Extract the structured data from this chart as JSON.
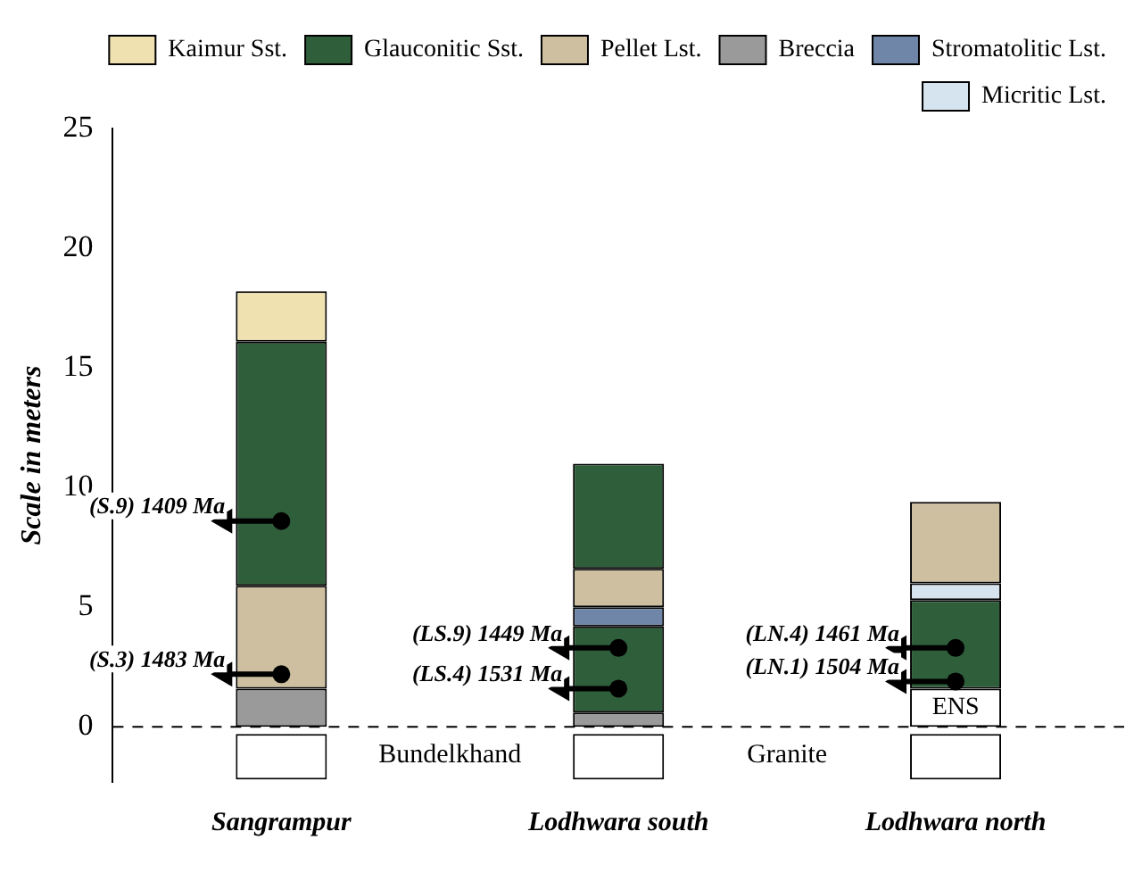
{
  "chart_data": {
    "type": "bar",
    "ylabel": "Scale in meters",
    "categories": [
      "Sangrampur",
      "Lodhwara south",
      "Lodhwara north"
    ],
    "series": [
      {
        "name": "Kaimur Sst.",
        "color": "#efe2b0",
        "base": [
          16.1,
          null,
          null
        ],
        "values": [
          2.1,
          null,
          null
        ]
      },
      {
        "name": "Glauconitic Sst.",
        "color": "#2f5e3b",
        "base": [
          5.9,
          0.6,
          1.6
        ],
        "values": [
          10.2,
          3.6,
          3.7
        ]
      },
      {
        "name": "Pellet Lst.",
        "color": "#cdbf9f",
        "base": [
          1.6,
          5.0,
          6.0
        ],
        "values": [
          4.3,
          1.6,
          3.4
        ]
      },
      {
        "name": "Breccia",
        "color": "#9a9a9a",
        "base": [
          0,
          0,
          null
        ],
        "values": [
          1.6,
          0.6,
          null
        ]
      },
      {
        "name": "Stromatolitic Lst.",
        "color": "#6f86a8",
        "base": [
          null,
          4.2,
          null
        ],
        "values": [
          null,
          0.8,
          null
        ]
      },
      {
        "name": "Micritic Lst.",
        "color": "#d6e4ef",
        "base": [
          null,
          null,
          5.3
        ],
        "values": [
          null,
          null,
          0.7
        ]
      },
      {
        "color": "#2f5e3b",
        "base": [
          null,
          6.6,
          null
        ],
        "values": [
          null,
          4.4,
          null
        ]
      },
      {
        "color": "#ffffff",
        "base": [
          null,
          null,
          0
        ],
        "values": [
          null,
          null,
          1.6
        ]
      },
      {
        "color": "#ffffff",
        "base": [
          -2.2,
          -2.2,
          -2.2
        ],
        "values": [
          1.9,
          1.9,
          1.9
        ]
      }
    ],
    "ylim": [
      -2.3,
      25
    ],
    "yticks": [
      0,
      5,
      10,
      15,
      20,
      25
    ],
    "ref_lines": [
      {
        "axis": "y",
        "value": 0,
        "color": "#000000",
        "line_style": "dashed"
      }
    ],
    "annotations": [
      {
        "text": "(S.9) 1409 Ma",
        "x": "Sangrampur",
        "y": 8.6
      },
      {
        "text": "(S.3) 1483 Ma",
        "x": "Sangrampur",
        "y": 2.2
      },
      {
        "text": "(LS.9) 1449 Ma",
        "x": "Lodhwara south",
        "y": 3.3
      },
      {
        "text": "(LS.4) 1531 Ma",
        "x": "Lodhwara south",
        "y": 1.6
      },
      {
        "text": "(LN.4) 1461 Ma",
        "x": "Lodhwara north",
        "y": 3.3
      },
      {
        "text": "(LN.1) 1504 Ma",
        "x": "Lodhwara north",
        "y": 1.9
      },
      "ENS",
      "Bundelkhand",
      "Granite"
    ],
    "legend": "top right",
    "grid": false
  }
}
